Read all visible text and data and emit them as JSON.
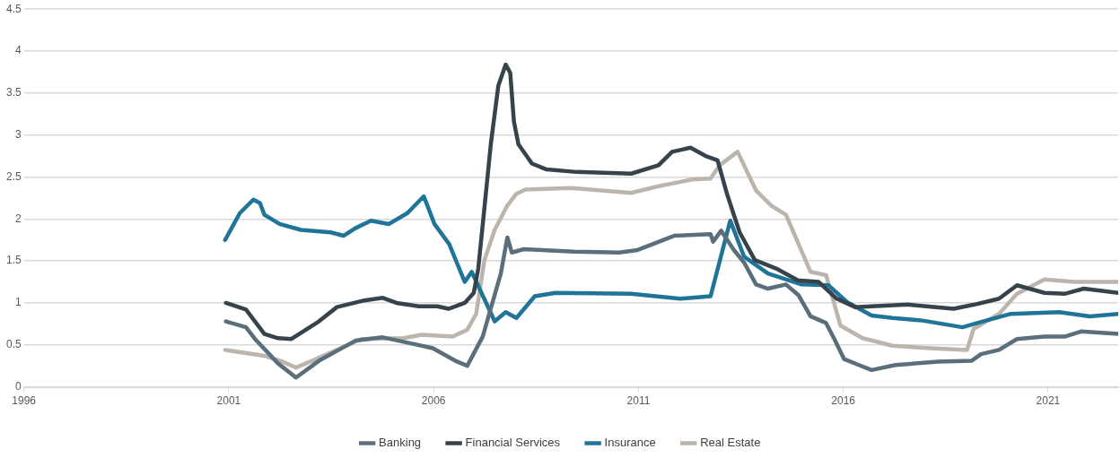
{
  "chart_data": {
    "type": "line",
    "xlim": [
      1996,
      2022.71
    ],
    "xticks": [
      1996,
      2001,
      2006,
      2011,
      2016,
      2021
    ],
    "ylim": [
      0,
      4.5
    ],
    "yticks": [
      0,
      0.5,
      1,
      1.5,
      2,
      2.5,
      3,
      3.5,
      4,
      4.5
    ],
    "grid": "y",
    "legend": "bottom",
    "marker": "none",
    "line_style": "solid",
    "series": [
      {
        "name": "Banking",
        "color": "#5a6e7c",
        "x": [
          2000.93,
          2001.42,
          2001.64,
          2002.2,
          2002.64,
          2003.2,
          2004.09,
          2004.76,
          2005.42,
          2005.98,
          2006.53,
          2006.82,
          2007.2,
          2007.64,
          2007.8,
          2007.91,
          2008.2,
          2009.42,
          2010.53,
          2010.98,
          2011.87,
          2012.76,
          2012.82,
          2013.02,
          2013.33,
          2013.58,
          2013.87,
          2014.16,
          2014.6,
          2014.91,
          2015.2,
          2015.58,
          2015.8,
          2016.02,
          2016.38,
          2016.69,
          2017.27,
          2018.31,
          2019.13,
          2019.36,
          2019.8,
          2020.24,
          2020.91,
          2021.42,
          2021.8,
          2022.71
        ],
        "values": [
          0.78,
          0.71,
          0.57,
          0.28,
          0.11,
          0.31,
          0.55,
          0.59,
          0.52,
          0.46,
          0.31,
          0.25,
          0.6,
          1.35,
          1.78,
          1.6,
          1.64,
          1.61,
          1.6,
          1.63,
          1.8,
          1.82,
          1.73,
          1.86,
          1.63,
          1.48,
          1.22,
          1.17,
          1.22,
          1.09,
          0.84,
          0.76,
          0.55,
          0.33,
          0.26,
          0.2,
          0.26,
          0.3,
          0.31,
          0.39,
          0.44,
          0.57,
          0.6,
          0.6,
          0.66,
          0.63
        ]
      },
      {
        "name": "Financial Services",
        "color": "#36434b",
        "x": [
          2000.93,
          2001.42,
          2001.87,
          2002.2,
          2002.53,
          2003.2,
          2003.64,
          2004.31,
          2004.76,
          2005.09,
          2005.64,
          2006.09,
          2006.36,
          2006.76,
          2006.98,
          2007.09,
          2007.2,
          2007.4,
          2007.58,
          2007.76,
          2007.87,
          2007.96,
          2008.07,
          2008.4,
          2008.76,
          2009.49,
          2010.82,
          2011.49,
          2011.82,
          2012.27,
          2012.64,
          2012.93,
          2013.16,
          2013.47,
          2013.84,
          2014.36,
          2014.89,
          2015.4,
          2015.84,
          2016.29,
          2016.69,
          2017.58,
          2018.69,
          2019.2,
          2019.8,
          2020.24,
          2020.91,
          2021.42,
          2021.87,
          2022.71
        ],
        "values": [
          1.0,
          0.92,
          0.63,
          0.58,
          0.57,
          0.78,
          0.95,
          1.03,
          1.06,
          1.0,
          0.96,
          0.96,
          0.93,
          1.0,
          1.12,
          1.41,
          1.94,
          2.91,
          3.59,
          3.84,
          3.74,
          3.16,
          2.89,
          2.66,
          2.59,
          2.56,
          2.54,
          2.64,
          2.8,
          2.85,
          2.75,
          2.7,
          2.3,
          1.84,
          1.51,
          1.41,
          1.27,
          1.25,
          1.05,
          0.95,
          0.96,
          0.98,
          0.93,
          0.98,
          1.05,
          1.21,
          1.12,
          1.11,
          1.17,
          1.12
        ]
      },
      {
        "name": "Insurance",
        "color": "#1f7498",
        "x": [
          2000.91,
          2001.27,
          2001.6,
          2001.76,
          2001.87,
          2002.24,
          2002.76,
          2003.49,
          2003.8,
          2004.09,
          2004.47,
          2004.91,
          2005.36,
          2005.76,
          2006.02,
          2006.38,
          2006.76,
          2006.93,
          2007.49,
          2007.76,
          2008.02,
          2008.47,
          2008.98,
          2010.82,
          2012.02,
          2012.76,
          2013.24,
          2013.58,
          2014.16,
          2014.98,
          2015.64,
          2016.09,
          2016.69,
          2017.2,
          2017.93,
          2018.91,
          2019.27,
          2020.09,
          2021.27,
          2022.02,
          2022.71
        ],
        "values": [
          1.75,
          2.07,
          2.23,
          2.19,
          2.05,
          1.94,
          1.87,
          1.84,
          1.8,
          1.89,
          1.98,
          1.94,
          2.07,
          2.27,
          1.94,
          1.7,
          1.25,
          1.37,
          0.78,
          0.89,
          0.82,
          1.08,
          1.12,
          1.11,
          1.05,
          1.08,
          1.98,
          1.55,
          1.35,
          1.22,
          1.21,
          1.01,
          0.85,
          0.82,
          0.79,
          0.71,
          0.76,
          0.87,
          0.89,
          0.84,
          0.87
        ]
      },
      {
        "name": "Real Estate",
        "color": "#bcb5ad",
        "x": [
          2000.91,
          2001.87,
          2002.31,
          2002.64,
          2003.13,
          2003.64,
          2004.24,
          2005.27,
          2005.71,
          2006.47,
          2006.82,
          2007.04,
          2007.24,
          2007.49,
          2007.8,
          2008.02,
          2008.24,
          2009.36,
          2010.82,
          2011.49,
          2012.31,
          2012.76,
          2012.98,
          2013.42,
          2013.87,
          2014.24,
          2014.6,
          2015.2,
          2015.58,
          2015.93,
          2016.47,
          2017.2,
          2018.13,
          2019.02,
          2019.18,
          2019.8,
          2020.24,
          2020.91,
          2021.64,
          2022.71
        ],
        "values": [
          0.44,
          0.37,
          0.3,
          0.23,
          0.33,
          0.44,
          0.57,
          0.58,
          0.62,
          0.6,
          0.68,
          0.87,
          1.51,
          1.87,
          2.16,
          2.3,
          2.35,
          2.37,
          2.31,
          2.39,
          2.47,
          2.48,
          2.64,
          2.8,
          2.34,
          2.16,
          2.05,
          1.37,
          1.33,
          0.73,
          0.58,
          0.49,
          0.46,
          0.44,
          0.69,
          0.87,
          1.11,
          1.28,
          1.25,
          1.25
        ]
      }
    ]
  }
}
